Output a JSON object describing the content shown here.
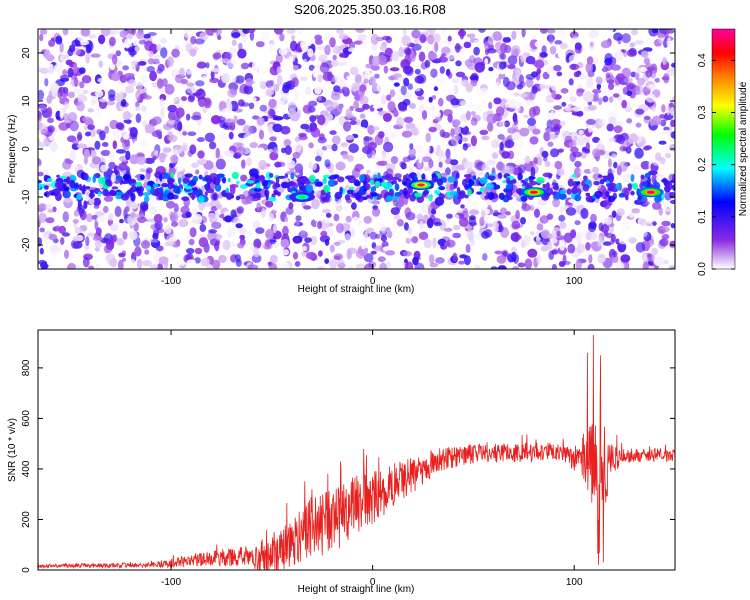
{
  "title": "S206.2025.350.03.16.R08",
  "chart_data": [
    {
      "type": "heatmap",
      "xlabel": "Height of straight line (km)",
      "ylabel": "Frequency (Hz)",
      "xlim": [
        -166,
        150
      ],
      "ylim": [
        -25,
        25
      ],
      "xticks": [
        -100,
        0,
        100
      ],
      "yticks": [
        -20,
        -10,
        0,
        10,
        20
      ],
      "colorbar": {
        "label": "Normalized spectral amplitude",
        "range": [
          0,
          0.46
        ],
        "ticks": [
          0.0,
          0.1,
          0.2,
          0.3,
          0.4
        ],
        "colors": [
          "#ffffff",
          "#8a2be2",
          "#0000ff",
          "#00ffff",
          "#00ff00",
          "#ffff00",
          "#ff8000",
          "#ff0000",
          "#ff00a0"
        ]
      },
      "band_frequency_hz": -8,
      "hotspots": [
        {
          "x": -35,
          "y": -10,
          "amp": 0.25
        },
        {
          "x": 24,
          "y": -7.5,
          "amp": 0.4
        },
        {
          "x": 80,
          "y": -9,
          "amp": 0.42
        },
        {
          "x": 138,
          "y": -9,
          "amp": 0.44
        }
      ]
    },
    {
      "type": "line",
      "xlabel": "Height of straight line (km)",
      "ylabel": "SNR (10 * v/v)",
      "xlim": [
        -166,
        150
      ],
      "ylim": [
        0,
        950
      ],
      "xticks": [
        -100,
        0,
        100
      ],
      "yticks": [
        0,
        200,
        400,
        600,
        800
      ],
      "color": "#e8201e",
      "envelope": [
        {
          "x": -166,
          "y": 15
        },
        {
          "x": -110,
          "y": 20
        },
        {
          "x": -60,
          "y": 60
        },
        {
          "x": -55,
          "y": 30
        },
        {
          "x": -40,
          "y": 110
        },
        {
          "x": -30,
          "y": 170
        },
        {
          "x": -20,
          "y": 200
        },
        {
          "x": -10,
          "y": 240
        },
        {
          "x": 0,
          "y": 290
        },
        {
          "x": 10,
          "y": 330
        },
        {
          "x": 25,
          "y": 400
        },
        {
          "x": 35,
          "y": 440
        },
        {
          "x": 50,
          "y": 460
        },
        {
          "x": 70,
          "y": 465
        },
        {
          "x": 90,
          "y": 470
        },
        {
          "x": 100,
          "y": 440
        },
        {
          "x": 105,
          "y": 430
        },
        {
          "x": 108,
          "y": 360
        },
        {
          "x": 110,
          "y": 420
        },
        {
          "x": 112,
          "y": 240
        },
        {
          "x": 114,
          "y": 500
        },
        {
          "x": 116,
          "y": 410
        },
        {
          "x": 120,
          "y": 450
        },
        {
          "x": 130,
          "y": 455
        },
        {
          "x": 150,
          "y": 455
        }
      ],
      "noise": [
        {
          "x": -166,
          "y": 8
        },
        {
          "x": -110,
          "y": 12
        },
        {
          "x": -80,
          "y": 35
        },
        {
          "x": -60,
          "y": 45
        },
        {
          "x": -40,
          "y": 110
        },
        {
          "x": -30,
          "y": 140
        },
        {
          "x": -15,
          "y": 150
        },
        {
          "x": 0,
          "y": 120
        },
        {
          "x": 20,
          "y": 80
        },
        {
          "x": 40,
          "y": 45
        },
        {
          "x": 95,
          "y": 40
        },
        {
          "x": 105,
          "y": 80
        },
        {
          "x": 108,
          "y": 260
        },
        {
          "x": 114,
          "y": 280
        },
        {
          "x": 118,
          "y": 90
        },
        {
          "x": 125,
          "y": 30
        },
        {
          "x": 150,
          "y": 30
        }
      ],
      "spikes": [
        {
          "x": 109.5,
          "y": 930
        },
        {
          "x": 112,
          "y": 20
        },
        {
          "x": 113,
          "y": 850
        },
        {
          "x": 114.5,
          "y": 30
        },
        {
          "x": 106.5,
          "y": 860
        }
      ]
    }
  ]
}
